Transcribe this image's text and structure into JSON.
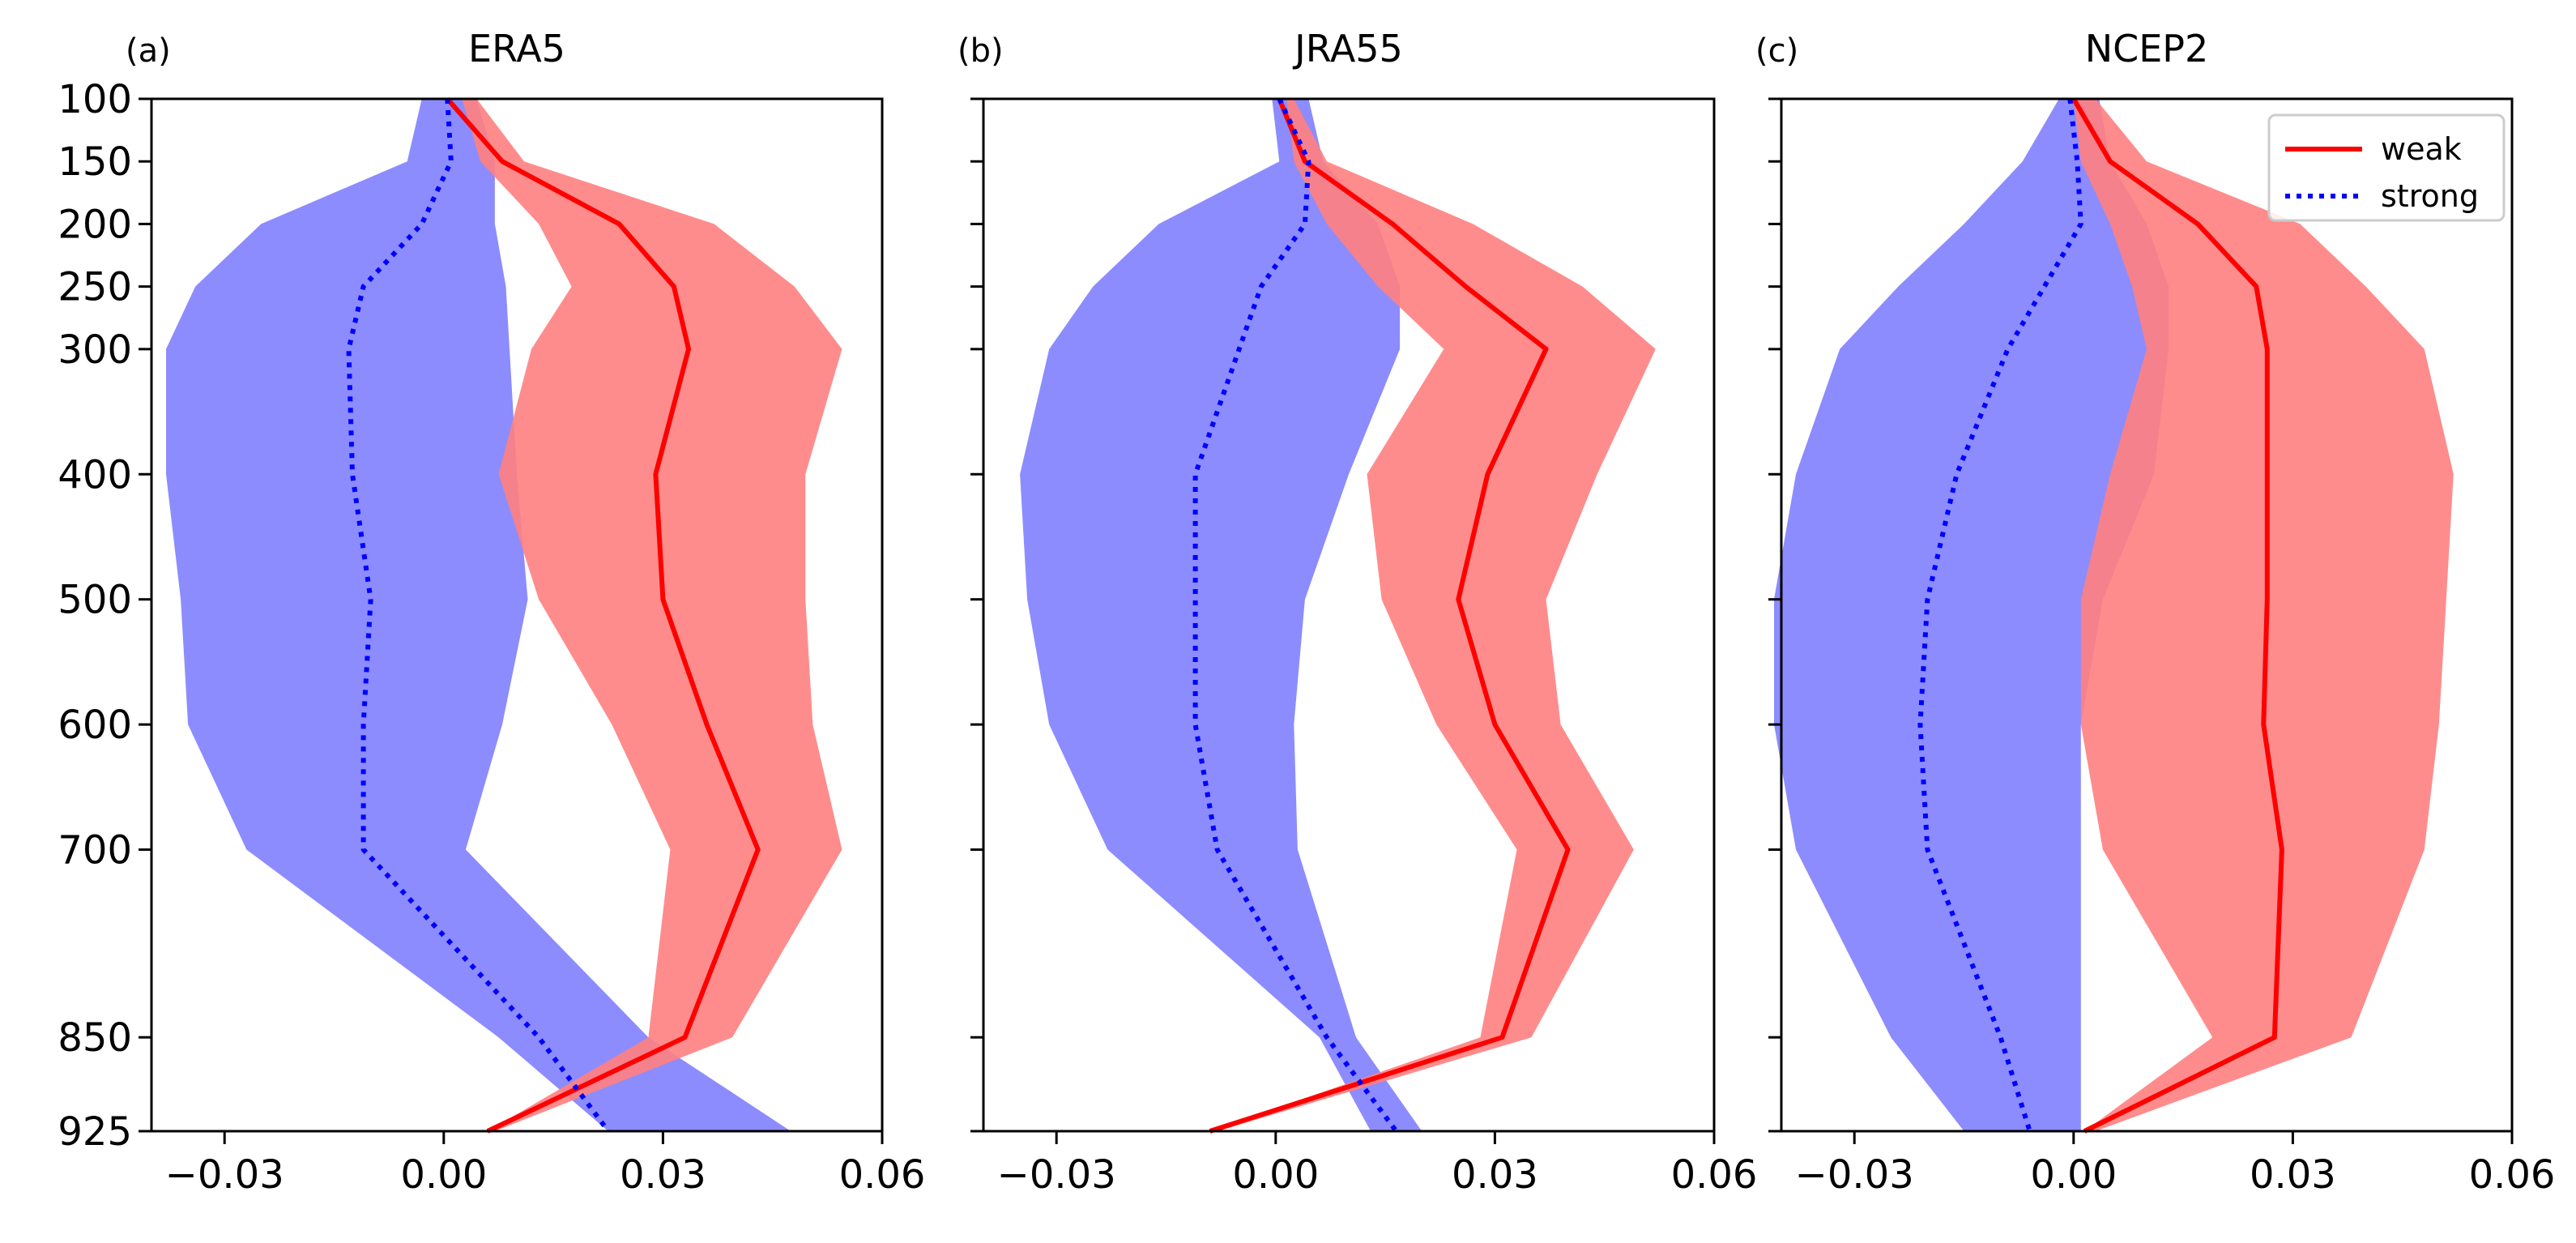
{
  "chart_data": [
    {
      "type": "line",
      "panel_label": "(a)",
      "title": "ERA5",
      "xlim": [
        -0.04,
        0.06
      ],
      "xticks": [
        -0.03,
        0.0,
        0.03,
        0.06
      ],
      "xtick_labels": [
        "−0.03",
        "0.00",
        "0.03",
        "0.06"
      ],
      "ylim": [
        100,
        925
      ],
      "yticks": [
        100,
        150,
        200,
        250,
        300,
        400,
        500,
        600,
        700,
        850,
        925
      ],
      "ytick_labels": [
        "100",
        "150",
        "200",
        "250",
        "300",
        "400",
        "500",
        "600",
        "700",
        "850",
        "925"
      ],
      "levels": [
        100,
        150,
        200,
        250,
        300,
        400,
        500,
        600,
        700,
        850,
        925
      ],
      "series": [
        {
          "name": "weak",
          "color": "#ff0000",
          "fill": "#ff8080",
          "style": "solid",
          "values": [
            0.0005,
            0.008,
            0.024,
            0.0315,
            0.0335,
            0.029,
            0.03,
            0.036,
            0.043,
            0.033,
            0.006
          ],
          "lower": [
            0.0025,
            0.005,
            0.013,
            0.0175,
            0.012,
            0.0075,
            0.013,
            0.023,
            0.031,
            0.028,
            0.006
          ],
          "upper": [
            0.0045,
            0.011,
            0.037,
            0.048,
            0.0545,
            0.0495,
            0.0495,
            0.0505,
            0.0545,
            0.0395,
            0.007
          ]
        },
        {
          "name": "strong",
          "color": "#0000ff",
          "fill": "#8080ff",
          "style": "dotted",
          "values": [
            0.0005,
            0.001,
            -0.003,
            -0.011,
            -0.013,
            -0.0125,
            -0.01,
            -0.011,
            -0.011,
            0.013,
            0.0225
          ],
          "lower": [
            -0.003,
            -0.005,
            -0.025,
            -0.034,
            -0.038,
            -0.038,
            -0.036,
            -0.035,
            -0.027,
            0.0075,
            0.0225
          ],
          "upper": [
            0.0045,
            0.007,
            0.007,
            0.0085,
            0.009,
            0.01,
            0.0115,
            0.008,
            0.003,
            0.028,
            0.0475
          ]
        }
      ],
      "legend": null
    },
    {
      "type": "line",
      "panel_label": "(b)",
      "title": "JRA55",
      "xlim": [
        -0.04,
        0.06
      ],
      "xticks": [
        -0.03,
        0.0,
        0.03,
        0.06
      ],
      "xtick_labels": [
        "−0.03",
        "0.00",
        "0.03",
        "0.06"
      ],
      "ylim": [
        100,
        925
      ],
      "yticks": [
        100,
        150,
        200,
        250,
        300,
        400,
        500,
        600,
        700,
        850,
        925
      ],
      "ytick_labels": [],
      "levels": [
        100,
        150,
        200,
        250,
        300,
        400,
        500,
        600,
        700,
        850,
        925
      ],
      "series": [
        {
          "name": "weak",
          "color": "#ff0000",
          "fill": "#ff8080",
          "style": "solid",
          "values": [
            0.0005,
            0.004,
            0.016,
            0.026,
            0.037,
            0.029,
            0.025,
            0.03,
            0.04,
            0.031,
            -0.009
          ],
          "lower": [
            0.0015,
            0.0025,
            0.007,
            0.014,
            0.023,
            0.0125,
            0.0145,
            0.022,
            0.033,
            0.028,
            -0.009
          ],
          "upper": [
            0.0025,
            0.007,
            0.027,
            0.042,
            0.052,
            0.044,
            0.037,
            0.039,
            0.049,
            0.035,
            -0.008
          ]
        },
        {
          "name": "strong",
          "color": "#0000ff",
          "fill": "#8080ff",
          "style": "dotted",
          "values": [
            0.0005,
            0.0045,
            0.004,
            -0.002,
            -0.005,
            -0.011,
            -0.011,
            -0.011,
            -0.008,
            0.007,
            0.0165
          ],
          "lower": [
            -0.0005,
            0.0005,
            -0.016,
            -0.025,
            -0.031,
            -0.035,
            -0.034,
            -0.031,
            -0.023,
            0.006,
            0.013
          ],
          "upper": [
            0.0045,
            0.0065,
            0.014,
            0.017,
            0.017,
            0.01,
            0.004,
            0.0025,
            0.003,
            0.011,
            0.02
          ]
        }
      ],
      "legend": null
    },
    {
      "type": "line",
      "panel_label": "(c)",
      "title": "NCEP2",
      "xlim": [
        -0.04,
        0.06
      ],
      "xticks": [
        -0.03,
        0.0,
        0.03,
        0.06
      ],
      "xtick_labels": [
        "−0.03",
        "0.00",
        "0.03",
        "0.06"
      ],
      "ylim": [
        100,
        925
      ],
      "yticks": [
        100,
        150,
        200,
        250,
        300,
        400,
        500,
        600,
        700,
        850,
        925
      ],
      "ytick_labels": [],
      "levels": [
        100,
        150,
        200,
        250,
        300,
        400,
        500,
        600,
        700,
        850,
        925
      ],
      "series": [
        {
          "name": "weak",
          "color": "#ff0000",
          "fill": "#ff8080",
          "style": "solid",
          "values": [
            0.0,
            0.005,
            0.017,
            0.025,
            0.0265,
            0.0265,
            0.0265,
            0.026,
            0.0285,
            0.0275,
            0.0015
          ],
          "lower": [
            0.0,
            0.001,
            0.005,
            0.008,
            0.01,
            0.005,
            0.001,
            0.001,
            0.004,
            0.019,
            0.0015
          ],
          "upper": [
            0.003,
            0.01,
            0.031,
            0.04,
            0.048,
            0.052,
            0.051,
            0.05,
            0.048,
            0.038,
            0.003
          ]
        },
        {
          "name": "strong",
          "color": "#0000ff",
          "fill": "#8080ff",
          "style": "dotted",
          "values": [
            -0.0005,
            0.0005,
            0.001,
            -0.004,
            -0.009,
            -0.016,
            -0.02,
            -0.021,
            -0.02,
            -0.01,
            -0.006
          ],
          "lower": [
            -0.002,
            -0.007,
            -0.015,
            -0.024,
            -0.032,
            -0.038,
            -0.041,
            -0.041,
            -0.038,
            -0.025,
            -0.015
          ],
          "upper": [
            0.0035,
            0.005,
            0.01,
            0.013,
            0.013,
            0.011,
            0.004,
            0.001,
            0.001,
            0.001,
            0.001
          ]
        }
      ],
      "legend": {
        "position": "top-right",
        "entries": [
          "weak",
          "strong"
        ]
      }
    }
  ]
}
